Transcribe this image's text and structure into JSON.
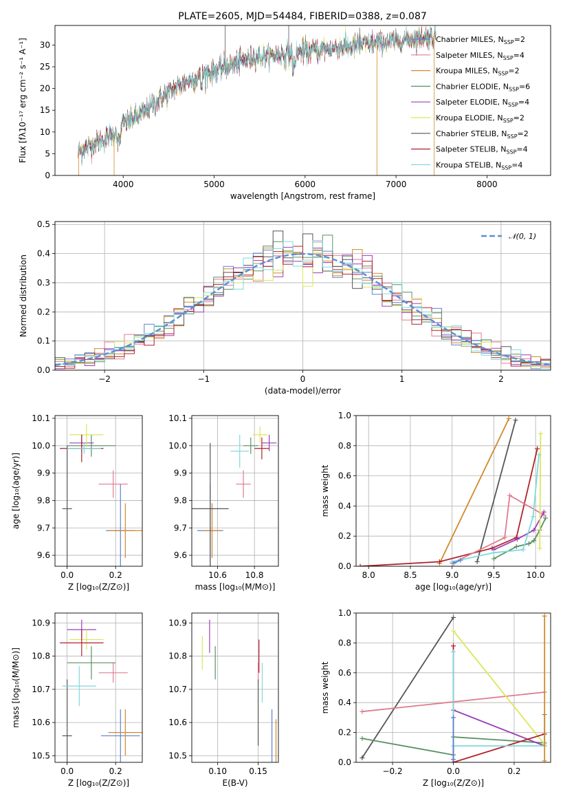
{
  "figure_title": "PLATE=2605, MJD=54484, FIBERID=0388, z=0.087",
  "colors": {
    "Chabrier MILES": "#5b7fd6",
    "Salpeter MILES": "#e07b8f",
    "Kroupa MILES": "#d0892b",
    "Chabrier ELODIE": "#5a8f63",
    "Salpeter ELODIE": "#9b3fb5",
    "Kroupa ELODIE": "#dce65a",
    "Chabrier STELIB": "#555555",
    "Salpeter STELIB": "#b0202a",
    "Kroupa STELIB": "#7fd9dc",
    "gauss": "#5b8fd6"
  },
  "chart_data": [
    {
      "id": "spectrum",
      "type": "line",
      "xlabel": "wavelength [Angstrom, rest frame]",
      "ylabel": "Flux [fλ10⁻¹⁷ erg cm⁻² s⁻¹ A⁻¹]",
      "xlim": [
        3250,
        8700
      ],
      "ylim": [
        0,
        34.5
      ],
      "xticks": [
        4000,
        5000,
        6000,
        7000,
        8000
      ],
      "yticks": [
        0,
        5,
        10,
        15,
        20,
        25,
        30
      ],
      "grid": false,
      "legend_position": "right",
      "continuum": {
        "x": [
          3500,
          3700,
          3900,
          4000,
          4200,
          4400,
          4600,
          4800,
          5000,
          5200,
          5400,
          5600,
          5800,
          6000,
          6200,
          6400,
          6600,
          6800,
          7000,
          7200,
          7400,
          7440
        ],
        "y": [
          5.5,
          7.5,
          9.5,
          12,
          14,
          17.5,
          20.5,
          22.5,
          24,
          25.5,
          27,
          27.5,
          28,
          28.5,
          29,
          29.5,
          30,
          30.5,
          31,
          31.5,
          32,
          32
        ],
        "x_end": 7440
      },
      "legend": [
        {
          "label": "Chabrier MILES, N",
          "sub": "SSP",
          "suffix": "=2",
          "key": "Chabrier MILES"
        },
        {
          "label": "Salpeter MILES, N",
          "sub": "SSP",
          "suffix": "=4",
          "key": "Salpeter MILES"
        },
        {
          "label": "Kroupa MILES, N",
          "sub": "SSP",
          "suffix": "=2",
          "key": "Kroupa MILES"
        },
        {
          "label": "Chabrier ELODIE, N",
          "sub": "SSP",
          "suffix": "=6",
          "key": "Chabrier ELODIE"
        },
        {
          "label": "Salpeter ELODIE, N",
          "sub": "SSP",
          "suffix": "=4",
          "key": "Salpeter ELODIE"
        },
        {
          "label": "Kroupa ELODIE, N",
          "sub": "SSP",
          "suffix": "=2",
          "key": "Kroupa ELODIE"
        },
        {
          "label": "Chabrier STELIB, N",
          "sub": "SSP",
          "suffix": "=2",
          "key": "Chabrier STELIB"
        },
        {
          "label": "Salpeter STELIB, N",
          "sub": "SSP",
          "suffix": "=4",
          "key": "Salpeter STELIB"
        },
        {
          "label": "Kroupa STELIB, N",
          "sub": "SSP",
          "suffix": "=4",
          "key": "Kroupa STELIB"
        }
      ]
    },
    {
      "id": "residuals",
      "type": "bar",
      "xlabel": "(data-model)/error",
      "ylabel": "Normed distribution",
      "xlim": [
        -2.5,
        2.5
      ],
      "ylim": [
        0,
        0.51
      ],
      "xticks": [
        -2,
        -1,
        0,
        1,
        2
      ],
      "yticks": [
        0.0,
        0.1,
        0.2,
        0.3,
        0.4,
        0.5
      ],
      "grid": true,
      "legend_position": "upper right",
      "legend": [
        {
          "label": "𝒩(0, 1)",
          "key": "gauss"
        }
      ],
      "bin_width": 0.1
    },
    {
      "id": "age_vs_Z",
      "type": "scatter",
      "xlabel": "Z [log₁₀(Z/Z⊙)]",
      "ylabel": "age  [log₁₀(age/yr)]",
      "xlim": [
        -0.05,
        0.31
      ],
      "ylim": [
        9.56,
        10.11
      ],
      "xticks": [
        0.0,
        0.2
      ],
      "yticks": [
        9.6,
        9.7,
        9.8,
        9.9,
        10.0,
        10.1
      ],
      "grid": true,
      "points": [
        {
          "key": "Chabrier MILES",
          "x": 0.22,
          "y": 9.69,
          "xerr": 0.06,
          "yerr": 0.17
        },
        {
          "key": "Salpeter MILES",
          "x": 0.19,
          "y": 9.86,
          "xerr": 0.06,
          "yerr": 0.05
        },
        {
          "key": "Kroupa MILES",
          "x": 0.24,
          "y": 9.69,
          "xerr": 0.07,
          "yerr": 0.1
        },
        {
          "key": "Chabrier ELODIE",
          "x": 0.1,
          "y": 10.0,
          "xerr": 0.1,
          "yerr": 0.04
        },
        {
          "key": "Salpeter ELODIE",
          "x": 0.06,
          "y": 10.01,
          "xerr": 0.05,
          "yerr": 0.03
        },
        {
          "key": "Kroupa ELODIE",
          "x": 0.08,
          "y": 10.04,
          "xerr": 0.07,
          "yerr": 0.04
        },
        {
          "key": "Chabrier STELIB",
          "x": 0.0,
          "y": 9.77,
          "xerr": 0.02,
          "yerr": 0.23
        },
        {
          "key": "Salpeter STELIB",
          "x": 0.06,
          "y": 9.99,
          "xerr": 0.09,
          "yerr": 0.05
        },
        {
          "key": "Kroupa STELIB",
          "x": 0.07,
          "y": 9.99,
          "xerr": 0.07,
          "yerr": 0.02
        }
      ]
    },
    {
      "id": "age_vs_mass",
      "type": "scatter",
      "xlabel": "mass [log₁₀(M/M⊙)]",
      "ylabel": "",
      "xlim": [
        10.46,
        10.93
      ],
      "ylim": [
        9.56,
        10.11
      ],
      "xticks": [
        10.6,
        10.8
      ],
      "yticks": [
        9.6,
        9.7,
        9.8,
        9.9,
        10.0,
        10.1
      ],
      "grid": true,
      "points": [
        {
          "key": "Chabrier MILES",
          "x": 10.56,
          "y": 9.69,
          "xerr": 0.07,
          "yerr": 0.17
        },
        {
          "key": "Salpeter MILES",
          "x": 10.74,
          "y": 9.86,
          "xerr": 0.04,
          "yerr": 0.05
        },
        {
          "key": "Kroupa MILES",
          "x": 10.57,
          "y": 9.69,
          "xerr": 0.05,
          "yerr": 0.1
        },
        {
          "key": "Chabrier ELODIE",
          "x": 10.78,
          "y": 10.0,
          "xerr": 0.04,
          "yerr": 0.03
        },
        {
          "key": "Salpeter ELODIE",
          "x": 10.88,
          "y": 10.01,
          "xerr": 0.04,
          "yerr": 0.03
        },
        {
          "key": "Kroupa ELODIE",
          "x": 10.83,
          "y": 10.04,
          "xerr": 0.04,
          "yerr": 0.03
        },
        {
          "key": "Chabrier STELIB",
          "x": 10.56,
          "y": 9.77,
          "xerr": 0.1,
          "yerr": 0.24
        },
        {
          "key": "Salpeter STELIB",
          "x": 10.84,
          "y": 9.99,
          "xerr": 0.04,
          "yerr": 0.04
        },
        {
          "key": "Kroupa STELIB",
          "x": 10.72,
          "y": 9.98,
          "xerr": 0.05,
          "yerr": 0.06
        }
      ]
    },
    {
      "id": "weight_vs_age",
      "type": "line",
      "xlabel": "age  [log₁₀(age/yr)]",
      "ylabel": "mass weight",
      "xlim": [
        7.85,
        10.18
      ],
      "ylim": [
        0,
        1
      ],
      "xticks": [
        8.0,
        8.5,
        9.0,
        9.5,
        10.0
      ],
      "yticks": [
        0.0,
        0.2,
        0.4,
        0.6,
        0.8,
        1.0
      ],
      "grid": true,
      "series": [
        {
          "key": "Kroupa MILES",
          "x": [
            8.85,
            9.68
          ],
          "y": [
            0.02,
            0.98
          ]
        },
        {
          "key": "Chabrier STELIB",
          "x": [
            9.3,
            9.76
          ],
          "y": [
            0.03,
            0.97
          ]
        },
        {
          "key": "Salpeter STELIB",
          "x": [
            7.9,
            8.85,
            9.48,
            9.77,
            10.02
          ],
          "y": [
            0.0,
            0.03,
            0.12,
            0.19,
            0.78
          ]
        },
        {
          "key": "Salpeter MILES",
          "x": [
            9.0,
            9.63,
            9.69,
            10.1
          ],
          "y": [
            0.02,
            0.19,
            0.47,
            0.34
          ]
        },
        {
          "key": "Salpeter ELODIE",
          "x": [
            9.5,
            9.78,
            9.98,
            10.1
          ],
          "y": [
            0.11,
            0.18,
            0.24,
            0.36
          ]
        },
        {
          "key": "Chabrier ELODIE",
          "x": [
            9.5,
            9.77,
            9.92,
            9.98,
            10.05,
            10.12
          ],
          "y": [
            0.05,
            0.13,
            0.15,
            0.17,
            0.24,
            0.32
          ]
        },
        {
          "key": "Kroupa ELODIE",
          "x": [
            10.05,
            10.06
          ],
          "y": [
            0.12,
            0.88
          ]
        },
        {
          "key": "Kroupa STELIB",
          "x": [
            9.0,
            9.5,
            9.85,
            9.97,
            10.04
          ],
          "y": [
            0.03,
            0.09,
            0.11,
            0.33,
            0.74
          ]
        },
        {
          "key": "Chabrier MILES",
          "x": [
            9.02,
            9.1
          ],
          "y": [
            0.02,
            0.04
          ]
        }
      ]
    },
    {
      "id": "mass_vs_Z",
      "type": "scatter",
      "xlabel": "Z [log₁₀(Z/Z⊙)]",
      "ylabel": "mass [log₁₀(M/M⊙)]",
      "xlim": [
        -0.05,
        0.31
      ],
      "ylim": [
        10.48,
        10.93
      ],
      "xticks": [
        0.0,
        0.2
      ],
      "yticks": [
        10.5,
        10.6,
        10.7,
        10.8,
        10.9
      ],
      "grid": true,
      "points": [
        {
          "key": "Chabrier MILES",
          "x": 0.22,
          "y": 10.56,
          "xerr": 0.08,
          "yerr": 0.08
        },
        {
          "key": "Salpeter MILES",
          "x": 0.19,
          "y": 10.75,
          "xerr": 0.06,
          "yerr": 0.03
        },
        {
          "key": "Kroupa MILES",
          "x": 0.24,
          "y": 10.57,
          "xerr": 0.07,
          "yerr": 0.07
        },
        {
          "key": "Chabrier ELODIE",
          "x": 0.1,
          "y": 10.78,
          "xerr": 0.1,
          "yerr": 0.05
        },
        {
          "key": "Salpeter ELODIE",
          "x": 0.06,
          "y": 10.88,
          "xerr": 0.06,
          "yerr": 0.03
        },
        {
          "key": "Kroupa ELODIE",
          "x": 0.08,
          "y": 10.85,
          "xerr": 0.07,
          "yerr": 0.03
        },
        {
          "key": "Chabrier STELIB",
          "x": 0.0,
          "y": 10.56,
          "xerr": 0.02,
          "yerr": 0.17
        },
        {
          "key": "Salpeter STELIB",
          "x": 0.06,
          "y": 10.84,
          "xerr": 0.09,
          "yerr": 0.04
        },
        {
          "key": "Kroupa STELIB",
          "x": 0.05,
          "y": 10.71,
          "xerr": 0.07,
          "yerr": 0.06
        }
      ]
    },
    {
      "id": "mass_vs_ebv",
      "type": "scatter",
      "xlabel": "E(B-V)",
      "ylabel": "",
      "xlim": [
        0.068,
        0.175
      ],
      "ylim": [
        10.48,
        10.93
      ],
      "xticks": [
        0.1,
        0.15
      ],
      "xtick_labels": [
        "0.10",
        "0.15"
      ],
      "yticks": [
        10.5,
        10.6,
        10.7,
        10.8,
        10.9
      ],
      "grid": true,
      "points": [
        {
          "key": "Chabrier MILES",
          "x": 0.167,
          "y": 10.56,
          "xerr": 0,
          "yerr": 0.08
        },
        {
          "key": "Salpeter MILES",
          "x": 0.15,
          "y": 10.75,
          "xerr": 0,
          "yerr": 0.03
        },
        {
          "key": "Kroupa MILES",
          "x": 0.172,
          "y": 10.54,
          "xerr": 0,
          "yerr": 0.07
        },
        {
          "key": "Chabrier ELODIE",
          "x": 0.097,
          "y": 10.78,
          "xerr": 0,
          "yerr": 0.05
        },
        {
          "key": "Salpeter ELODIE",
          "x": 0.09,
          "y": 10.86,
          "xerr": 0,
          "yerr": 0.05
        },
        {
          "key": "Kroupa ELODIE",
          "x": 0.081,
          "y": 10.81,
          "xerr": 0,
          "yerr": 0.05
        },
        {
          "key": "Chabrier STELIB",
          "x": 0.15,
          "y": 10.63,
          "xerr": 0,
          "yerr": 0.1
        },
        {
          "key": "Salpeter STELIB",
          "x": 0.151,
          "y": 10.8,
          "xerr": 0,
          "yerr": 0.05
        },
        {
          "key": "Kroupa STELIB",
          "x": 0.155,
          "y": 10.72,
          "xerr": 0,
          "yerr": 0.06
        }
      ]
    },
    {
      "id": "weight_vs_Z",
      "type": "line",
      "xlabel": "Z [log₁₀(Z/Z⊙)]",
      "ylabel": "mass weight",
      "xlim": [
        -0.32,
        0.32
      ],
      "ylim": [
        0,
        1
      ],
      "xticks": [
        -0.2,
        0.0,
        0.2
      ],
      "yticks": [
        0.0,
        0.2,
        0.4,
        0.6,
        0.8,
        1.0
      ],
      "grid": true,
      "series": [
        {
          "key": "Chabrier STELIB",
          "x": [
            -0.3,
            0.0
          ],
          "y": [
            0.03,
            0.97
          ]
        },
        {
          "key": "Salpeter MILES",
          "x": [
            -0.3,
            0.3
          ],
          "y": [
            0.34,
            0.47
          ]
        },
        {
          "key": "Chabrier ELODIE",
          "x": [
            -0.3,
            0.0,
            0.0,
            0.3,
            0.3
          ],
          "y": [
            0.16,
            0.05,
            0.17,
            0.13,
            0.32
          ]
        },
        {
          "key": "Salpeter ELODIE",
          "x": [
            0.0,
            0.3
          ],
          "y": [
            0.35,
            0.11
          ]
        },
        {
          "key": "Kroupa ELODIE",
          "x": [
            0.0,
            0.3
          ],
          "y": [
            0.88,
            0.12
          ]
        },
        {
          "key": "Salpeter STELIB",
          "x": [
            0.0,
            0.0,
            0.3
          ],
          "y": [
            0.78,
            0.0,
            0.19
          ]
        },
        {
          "key": "Kroupa STELIB",
          "x": [
            0.0,
            0.0,
            0.3
          ],
          "y": [
            0.74,
            0.11,
            0.11
          ]
        },
        {
          "key": "Kroupa MILES",
          "x": [
            0.3,
            0.3
          ],
          "y": [
            0.98,
            0.01
          ]
        },
        {
          "key": "Chabrier MILES",
          "x": [
            0.0,
            0.0
          ],
          "y": [
            0.02,
            0.3
          ]
        }
      ]
    }
  ]
}
